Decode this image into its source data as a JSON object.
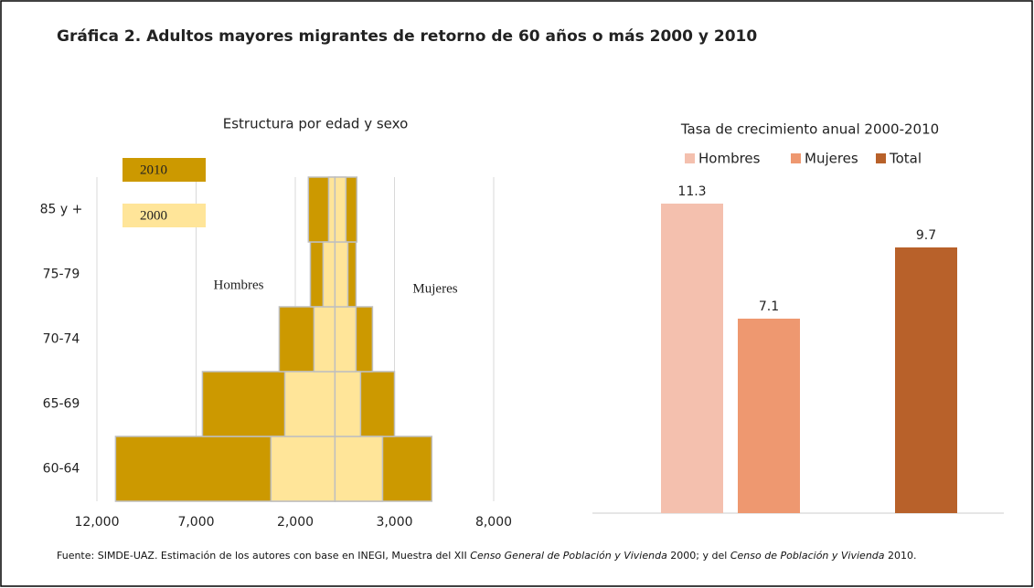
{
  "title": "Gráfica 2. Adultos mayores migrantes de retorno de 60 años o más 2000 y 2010",
  "source": [
    "Fuente: SIMDE-UAZ. Estimación de los autores con base en INEGI, Muestra del XII ",
    "Censo General de Población y Vivienda",
    " 2000; y del ",
    "Censo de Población y Vivienda",
    " 2010."
  ],
  "chart_data": [
    {
      "type": "pyramid",
      "title": "Estructura por edad y sexo",
      "categories": [
        "60-64",
        "65-69",
        "70-74",
        "75-79",
        "85 y +"
      ],
      "annotations": [
        "Hombres",
        "Mujeres"
      ],
      "series": [
        {
          "name": "2010",
          "color": "#cc9900",
          "hombres": [
            -11060,
            -6680,
            -2810,
            -1240,
            -1340
          ],
          "mujeres": [
            4880,
            3000,
            1890,
            1060,
            1100
          ]
        },
        {
          "name": "2000",
          "color": "#ffe599",
          "hombres": [
            -3230,
            -2530,
            -1060,
            -600,
            -320
          ],
          "mujeres": [
            2400,
            1290,
            1060,
            650,
            550
          ]
        }
      ],
      "xlim": [
        -12000,
        8000
      ],
      "xticks": [
        {
          "value": -12000,
          "label": "12,000"
        },
        {
          "value": -7000,
          "label": "7,000"
        },
        {
          "value": -2000,
          "label": "2,000"
        },
        {
          "value": 3000,
          "label": "3,000"
        },
        {
          "value": 8000,
          "label": "8,000"
        }
      ],
      "grid": true
    },
    {
      "type": "bar",
      "title": "Tasa de crecimiento anual 2000-2010",
      "series": [
        {
          "name": "Hombres",
          "color": "#f4c0ae",
          "values": [
            11.3
          ]
        },
        {
          "name": "Mujeres",
          "color": "#ee9870",
          "values": [
            7.1
          ]
        },
        {
          "name": "Total",
          "color": "#b8612a",
          "values": [
            9.7
          ]
        }
      ]
    }
  ]
}
